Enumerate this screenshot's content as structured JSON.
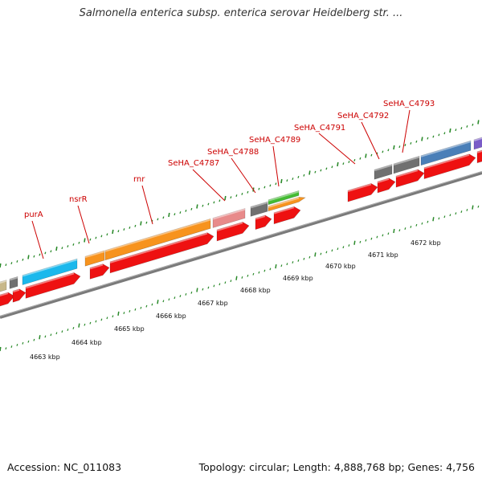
{
  "title": "Salmonella enterica subsp. enterica serovar Heidelberg str. ...",
  "footer": {
    "accession": "Accession: NC_011083",
    "summary": "Topology: circular; Length: 4,888,768 bp; Genes: 4,756"
  },
  "colors": {
    "backbone": "#888888",
    "label": "#cc0000",
    "tick": "#2a8a2a",
    "cds_red": "#ee1111",
    "purA_blue": "#1bb8ec",
    "nsrR_orange": "#f7931e",
    "rnr_orange": "#f7931e",
    "pink": "#e88a8a",
    "gray": "#707070",
    "green": "#44bb33",
    "steelblue": "#4a7fb8",
    "purple": "#7a5cc8",
    "khaki": "#c8b88a"
  },
  "gene_labels": [
    {
      "text": "purA"
    },
    {
      "text": "nsrR"
    },
    {
      "text": "rnr"
    },
    {
      "text": "SeHA_C4787"
    },
    {
      "text": "SeHA_C4788"
    },
    {
      "text": "SeHA_C4789"
    },
    {
      "text": "SeHA_C4791"
    },
    {
      "text": "SeHA_C4792"
    },
    {
      "text": "SeHA_C4793"
    }
  ],
  "kbp_labels": [
    {
      "text": "4663 kbp"
    },
    {
      "text": "4664 kbp"
    },
    {
      "text": "4665 kbp"
    },
    {
      "text": "4666 kbp"
    },
    {
      "text": "4667 kbp"
    },
    {
      "text": "4668 kbp"
    },
    {
      "text": "4669 kbp"
    },
    {
      "text": "4670 kbp"
    },
    {
      "text": "4671 kbp"
    },
    {
      "text": "4672 kbp"
    }
  ]
}
